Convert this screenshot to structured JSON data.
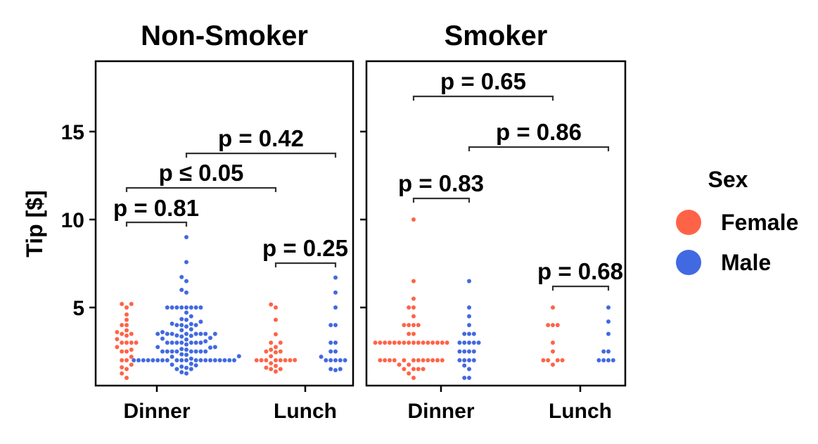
{
  "chart_data": {
    "type": "swarm",
    "ylabel": "Tip [$]",
    "ylim": [
      0.5,
      19
    ],
    "yticks": [
      5,
      10,
      15
    ],
    "categories": [
      "Dinner",
      "Lunch"
    ],
    "legend": {
      "title": "Sex",
      "position": "right",
      "entries": [
        {
          "label": "Female",
          "color": "#FF6347"
        },
        {
          "label": "Male",
          "color": "#4169E1"
        }
      ]
    },
    "panels": [
      {
        "title": "Non-Smoker",
        "groups": [
          {
            "category": "Dinner",
            "sex": "Female",
            "values": [
              1.0,
              1.25,
              1.5,
              1.6,
              1.75,
              2.0,
              2.0,
              2.2,
              2.5,
              2.5,
              2.6,
              2.75,
              3.0,
              3.0,
              3.0,
              3.0,
              3.2,
              3.4,
              3.5,
              3.5,
              3.6,
              3.7,
              4.0,
              4.0,
              4.3,
              4.6,
              5.0,
              5.2,
              5.2
            ]
          },
          {
            "category": "Dinner",
            "sex": "Male",
            "values": [
              1.25,
              1.32,
              1.5,
              1.5,
              1.57,
              1.64,
              1.71,
              1.75,
              1.8,
              2.0,
              2.0,
              2.0,
              2.0,
              2.0,
              2.0,
              2.0,
              2.0,
              2.0,
              2.0,
              2.0,
              2.0,
              2.0,
              2.0,
              2.0,
              2.0,
              2.0,
              2.0,
              2.0,
              2.0,
              2.09,
              2.2,
              2.23,
              2.31,
              2.34,
              2.5,
              2.5,
              2.5,
              2.5,
              2.5,
              2.5,
              2.5,
              2.5,
              2.6,
              2.64,
              2.72,
              2.75,
              2.75,
              2.9,
              3.0,
              3.0,
              3.0,
              3.0,
              3.0,
              3.0,
              3.0,
              3.08,
              3.18,
              3.23,
              3.27,
              3.35,
              3.39,
              3.41,
              3.5,
              3.5,
              3.5,
              3.5,
              3.5,
              3.5,
              3.5,
              3.5,
              3.6,
              3.71,
              3.76,
              3.92,
              4.0,
              4.0,
              4.0,
              4.06,
              4.08,
              4.19,
              4.3,
              4.34,
              4.5,
              4.71,
              5.0,
              5.0,
              5.0,
              5.0,
              5.0,
              5.0,
              5.0,
              5.0,
              5.85,
              6.0,
              6.5,
              6.73,
              7.58,
              9.0
            ]
          },
          {
            "category": "Lunch",
            "sex": "Female",
            "values": [
              1.36,
              1.5,
              1.5,
              1.58,
              1.68,
              1.83,
              2.0,
              2.0,
              2.0,
              2.0,
              2.0,
              2.0,
              2.0,
              2.01,
              2.23,
              2.45,
              2.5,
              2.5,
              2.6,
              2.75,
              3.0,
              3.0,
              3.48,
              4.3,
              5.0,
              5.17
            ]
          },
          {
            "category": "Lunch",
            "sex": "Male",
            "values": [
              1.44,
              1.5,
              1.5,
              2.0,
              2.0,
              2.0,
              2.0,
              2.0,
              2.2,
              2.5,
              2.5,
              3.0,
              3.0,
              4.0,
              4.0,
              5.0,
              5.85,
              6.7
            ]
          }
        ],
        "annotations": [
          {
            "label": "p = 0.81"
          },
          {
            "label": "p ≤ 0.05"
          },
          {
            "label": "p = 0.42"
          },
          {
            "label": "p = 0.25"
          }
        ]
      },
      {
        "title": "Smoker",
        "groups": [
          {
            "category": "Dinner",
            "sex": "Female",
            "values": [
              1.0,
              1.25,
              1.5,
              1.5,
              1.5,
              1.5,
              1.75,
              1.75,
              2.0,
              2.0,
              2.0,
              2.0,
              2.0,
              2.0,
              2.0,
              2.0,
              2.0,
              2.0,
              2.0,
              2.0,
              3.0,
              3.0,
              3.0,
              3.0,
              3.0,
              3.0,
              3.0,
              3.0,
              3.0,
              3.0,
              3.0,
              3.0,
              3.0,
              3.0,
              3.0,
              3.0,
              3.5,
              3.5,
              4.0,
              4.0,
              4.0,
              4.0,
              4.5,
              5.0,
              5.0,
              5.5,
              6.5,
              10.0
            ]
          },
          {
            "category": "Dinner",
            "sex": "Male",
            "values": [
              1.0,
              1.0,
              1.5,
              1.7,
              2.0,
              2.0,
              2.0,
              2.0,
              2.5,
              2.5,
              2.5,
              2.5,
              3.0,
              3.0,
              3.0,
              3.0,
              3.0,
              3.5,
              3.5,
              3.5,
              4.0,
              4.5,
              5.0,
              6.5
            ]
          },
          {
            "category": "Lunch",
            "sex": "Female",
            "values": [
              1.75,
              2.0,
              2.0,
              2.0,
              2.0,
              2.5,
              3.0,
              4.0,
              4.0,
              4.0,
              5.0
            ]
          },
          {
            "category": "Lunch",
            "sex": "Male",
            "values": [
              2.0,
              2.0,
              2.0,
              2.0,
              2.5,
              2.5,
              3.5,
              4.2,
              5.0
            ]
          }
        ],
        "annotations": [
          {
            "label": "p = 0.65"
          },
          {
            "label": "p = 0.86"
          },
          {
            "label": "p = 0.83"
          },
          {
            "label": "p = 0.68"
          }
        ]
      }
    ]
  }
}
